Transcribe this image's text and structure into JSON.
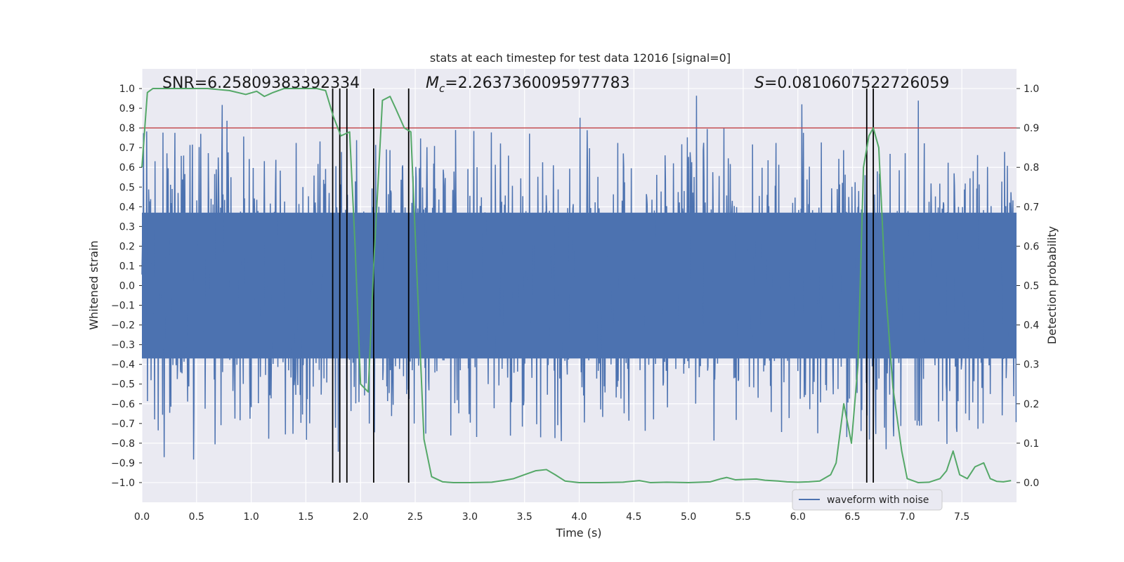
{
  "chart_data": {
    "type": "line",
    "title": "stats at each timestep for test data 12016 [signal=0]",
    "xlabel": "Time (s)",
    "ylabel": "Whitened strain",
    "y2label": "Detection probability",
    "xlim": [
      0.0,
      8.0
    ],
    "ylim": [
      -1.1,
      1.1
    ],
    "y2lim": [
      -0.05,
      1.05
    ],
    "xticks": [
      "0.0",
      "0.5",
      "1.0",
      "1.5",
      "2.0",
      "2.5",
      "3.0",
      "3.5",
      "4.0",
      "4.5",
      "5.0",
      "5.5",
      "6.0",
      "6.5",
      "7.0",
      "7.5"
    ],
    "yticks": [
      "1.0",
      "0.9",
      "0.8",
      "0.7",
      "0.6",
      "0.5",
      "0.4",
      "0.3",
      "0.2",
      "0.1",
      "0.0",
      "-0.1",
      "-0.2",
      "-0.3",
      "-0.4",
      "-0.5",
      "-0.6",
      "-0.7",
      "-0.8",
      "-0.9",
      "-1.0"
    ],
    "y2ticks": [
      "1.0",
      "0.9",
      "0.8",
      "0.7",
      "0.6",
      "0.5",
      "0.4",
      "0.3",
      "0.2",
      "0.1",
      "0.0"
    ],
    "legend": {
      "entries": [
        "waveform with noise"
      ],
      "placement": "lower-right"
    },
    "annotations": {
      "snr": "SNR=6.25809383392334",
      "mc_symbol": "M",
      "mc_sub": "c",
      "mc_value": "=2.2637360095977783",
      "s_symbol": "S",
      "s_value": "=0.0810607522726059"
    },
    "threshold": {
      "value": 0.9,
      "axis": "detection probability",
      "color": "#c44e52"
    },
    "vlines_x": [
      1.745,
      1.81,
      1.875,
      2.12,
      2.44,
      6.63,
      6.69
    ],
    "waveform": {
      "name": "waveform with noise",
      "color": "#4c72b0",
      "band_abs": 0.37,
      "peak_range": [
        -1.0,
        1.0
      ],
      "sampling_note": "dense noise, approx 2048 samples per axis width"
    },
    "probability": {
      "name": "detection probability",
      "color": "#55a868",
      "x": [
        0.0,
        0.05,
        0.1,
        0.2,
        0.4,
        0.6,
        0.8,
        0.95,
        1.05,
        1.12,
        1.2,
        1.3,
        1.4,
        1.5,
        1.6,
        1.68,
        1.75,
        1.82,
        1.9,
        1.95,
        2.0,
        2.07,
        2.12,
        2.2,
        2.27,
        2.32,
        2.4,
        2.46,
        2.52,
        2.58,
        2.65,
        2.75,
        2.85,
        3.0,
        3.2,
        3.3,
        3.4,
        3.5,
        3.6,
        3.7,
        3.78,
        3.87,
        4.0,
        4.2,
        4.4,
        4.55,
        4.65,
        4.8,
        5.0,
        5.2,
        5.3,
        5.35,
        5.43,
        5.5,
        5.62,
        5.7,
        5.82,
        5.9,
        6.0,
        6.1,
        6.2,
        6.3,
        6.35,
        6.42,
        6.49,
        6.55,
        6.6,
        6.65,
        6.69,
        6.74,
        6.8,
        6.87,
        6.95,
        7.0,
        7.1,
        7.2,
        7.3,
        7.36,
        7.42,
        7.48,
        7.55,
        7.62,
        7.7,
        7.76,
        7.82,
        7.88,
        7.95
      ],
      "values": [
        0.8,
        0.99,
        1.0,
        1.0,
        1.0,
        1.0,
        0.995,
        0.985,
        0.993,
        0.98,
        0.99,
        1.0,
        1.0,
        1.0,
        1.0,
        0.995,
        0.93,
        0.88,
        0.89,
        0.6,
        0.25,
        0.23,
        0.55,
        0.97,
        0.98,
        0.95,
        0.9,
        0.89,
        0.5,
        0.11,
        0.015,
        0.002,
        0.0,
        0.0,
        0.001,
        0.005,
        0.01,
        0.02,
        0.03,
        0.033,
        0.02,
        0.004,
        0.0,
        0.0,
        0.001,
        0.005,
        0.0,
        0.001,
        0.0,
        0.002,
        0.01,
        0.013,
        0.007,
        0.008,
        0.009,
        0.006,
        0.004,
        0.002,
        0.001,
        0.002,
        0.004,
        0.02,
        0.05,
        0.2,
        0.1,
        0.3,
        0.8,
        0.88,
        0.9,
        0.85,
        0.5,
        0.24,
        0.08,
        0.01,
        0.0,
        0.001,
        0.01,
        0.03,
        0.08,
        0.02,
        0.01,
        0.04,
        0.05,
        0.01,
        0.003,
        0.002,
        0.005
      ]
    }
  }
}
